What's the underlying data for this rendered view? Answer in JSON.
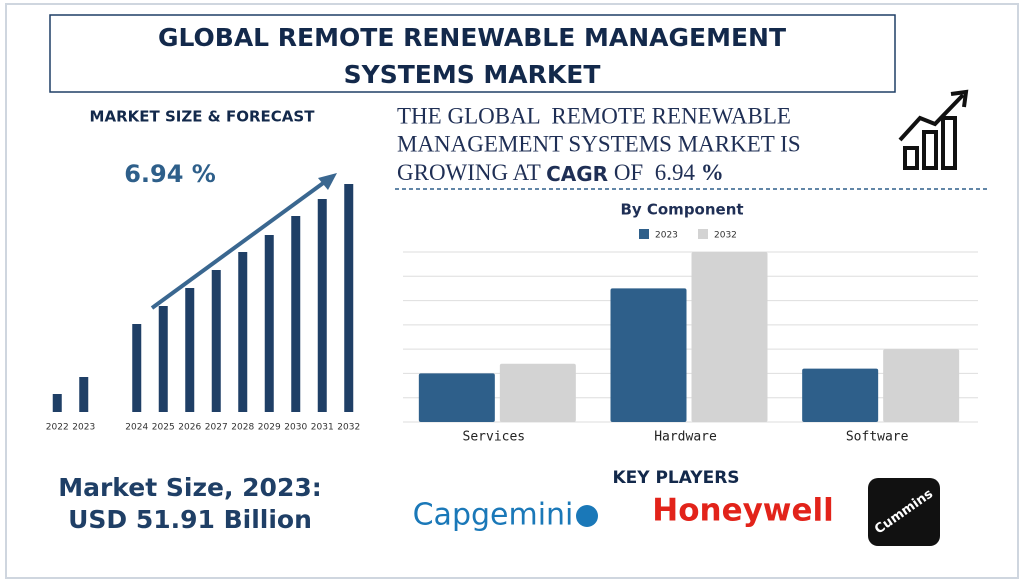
{
  "header": {
    "title_lines": [
      "GLOBAL REMOTE RENEWABLE MANAGEMENT",
      "SYSTEMS MARKET"
    ]
  },
  "forecast": {
    "heading": "MARKET SIZE & FORECAST",
    "cagr_label": "6.94 %"
  },
  "headline": {
    "lines": [
      "THE GLOBAL  REMOTE RENEWABLE",
      "MANAGEMENT SYSTEMS MARKET IS"
    ],
    "line3": [
      "GROWING AT ",
      "CAGR",
      " OF  6.94 ",
      "%"
    ]
  },
  "market_size": {
    "lines": [
      "Market Size, 2023:",
      "USD 51.91 Billion"
    ]
  },
  "key_players": {
    "heading": "KEY PLAYERS",
    "companies": [
      "Capgemini",
      "Honeywell",
      "Cummins"
    ]
  },
  "chart_data": [
    {
      "type": "bar",
      "categories": [
        "2022",
        "2023",
        null,
        "2024",
        "2025",
        "2026",
        "2027",
        "2028",
        "2029",
        "2030",
        "2031",
        "2032"
      ],
      "values": [
        18,
        35,
        null,
        88,
        106,
        124,
        142,
        160,
        177,
        196,
        213,
        228
      ],
      "color": "#1f3f66",
      "ylim": [
        0,
        240
      ]
    },
    {
      "type": "grouped_bar",
      "title": "By Component",
      "categories": [
        "Services",
        "Hardware",
        "Software"
      ],
      "series": [
        {
          "name": "2023",
          "color": "#2e5f8a",
          "values": [
            2,
            5.5,
            2.2
          ]
        },
        {
          "name": "2032",
          "color": "#d3d3d3",
          "values": [
            2.4,
            7,
            3
          ]
        }
      ],
      "ylim": [
        0,
        7
      ],
      "yticks": [
        0,
        1,
        2,
        3,
        4,
        5,
        6,
        7
      ],
      "grid": true
    }
  ]
}
